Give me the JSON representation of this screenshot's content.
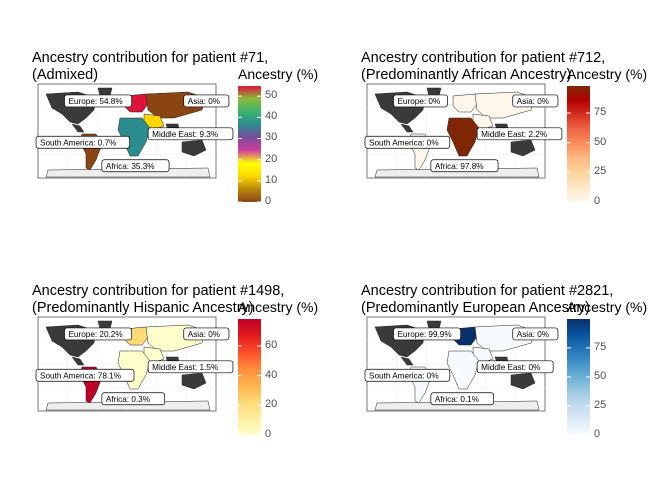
{
  "chart_data": [
    {
      "type": "map",
      "title": "Ancestry contribution for patient #71,",
      "subtitle": "(Admixed)",
      "legend": {
        "title": "Ancestry (%)",
        "ticks": [
          0,
          10,
          20,
          30,
          40,
          50
        ],
        "range": [
          0,
          54.8
        ],
        "colors": [
          "#8b4513",
          "#b8860b",
          "#ffd700",
          "#ffff00",
          "#cd3f9f",
          "#7b4b9c",
          "#2a8c8c",
          "#3cb371",
          "#8bbb3a",
          "#dc143c"
        ],
        "placement": "right"
      },
      "regions": [
        {
          "name": "Europe",
          "value": 54.8,
          "label": "Europe: 54.8%"
        },
        {
          "name": "Asia",
          "value": 0,
          "label": "Asia: 0%"
        },
        {
          "name": "Middle East",
          "value": 9.3,
          "label": "Middle East: 9.3%"
        },
        {
          "name": "South America",
          "value": 0.7,
          "label": "South America: 0.7%"
        },
        {
          "name": "Africa",
          "value": 35.3,
          "label": "Africa: 35.3%"
        }
      ]
    },
    {
      "type": "map",
      "title": "Ancestry contribution for patient #712,",
      "subtitle": "(Predominantly African Ancestry)",
      "legend": {
        "title": "Ancestry (%)",
        "ticks": [
          0,
          25,
          50,
          75
        ],
        "range": [
          0,
          97.8
        ],
        "colors": [
          "#fff7ec",
          "#fee8c8",
          "#fdd49e",
          "#fdbb84",
          "#fc8d59",
          "#ef6548",
          "#d7301f",
          "#b30000",
          "#7f2704"
        ],
        "placement": "right"
      },
      "regions": [
        {
          "name": "Europe",
          "value": 0,
          "label": "Europe: 0%"
        },
        {
          "name": "Asia",
          "value": 0,
          "label": "Asia: 0%"
        },
        {
          "name": "Middle East",
          "value": 2.2,
          "label": "Middle East: 2.2%"
        },
        {
          "name": "South America",
          "value": 0,
          "label": "South America: 0%"
        },
        {
          "name": "Africa",
          "value": 97.8,
          "label": "Africa: 97.8%"
        }
      ]
    },
    {
      "type": "map",
      "title": "Ancestry contribution for patient #1498,",
      "subtitle": "(Predominantly Hispanic Ancestry)",
      "legend": {
        "title": "Ancestry (%)",
        "ticks": [
          0,
          20,
          40,
          60
        ],
        "range": [
          0,
          78.1
        ],
        "colors": [
          "#ffffcc",
          "#ffeda0",
          "#fed976",
          "#feb24c",
          "#fd8d3c",
          "#fc4e2a",
          "#e31a1c",
          "#bd0026"
        ],
        "placement": "right"
      },
      "regions": [
        {
          "name": "Europe",
          "value": 20.2,
          "label": "Europe: 20.2%"
        },
        {
          "name": "Asia",
          "value": 0,
          "label": "Asia: 0%"
        },
        {
          "name": "Middle East",
          "value": 1.5,
          "label": "Middle East: 1.5%"
        },
        {
          "name": "South America",
          "value": 78.1,
          "label": "South America: 78.1%"
        },
        {
          "name": "Africa",
          "value": 0.3,
          "label": "Africa: 0.3%"
        }
      ]
    },
    {
      "type": "map",
      "title": "Ancestry contribution for patient #2821,",
      "subtitle": "(Predominantly European Ancestry)",
      "legend": {
        "title": "Ancestry (%)",
        "ticks": [
          0,
          25,
          50,
          75
        ],
        "range": [
          0,
          99.9
        ],
        "colors": [
          "#f7fbff",
          "#deebf7",
          "#c6dbef",
          "#9ecae1",
          "#6baed6",
          "#4292c6",
          "#2171b5",
          "#08519c",
          "#08306b"
        ],
        "placement": "right"
      },
      "regions": [
        {
          "name": "Europe",
          "value": 99.9,
          "label": "Europe: 99.9%"
        },
        {
          "name": "Asia",
          "value": 0,
          "label": "Asia: 0%"
        },
        {
          "name": "Middle East",
          "value": 0,
          "label": "Middle East: 0%"
        },
        {
          "name": "South America",
          "value": 0,
          "label": "South America: 0%"
        },
        {
          "name": "Africa",
          "value": 0.1,
          "label": "Africa: 0.1%"
        }
      ]
    }
  ]
}
